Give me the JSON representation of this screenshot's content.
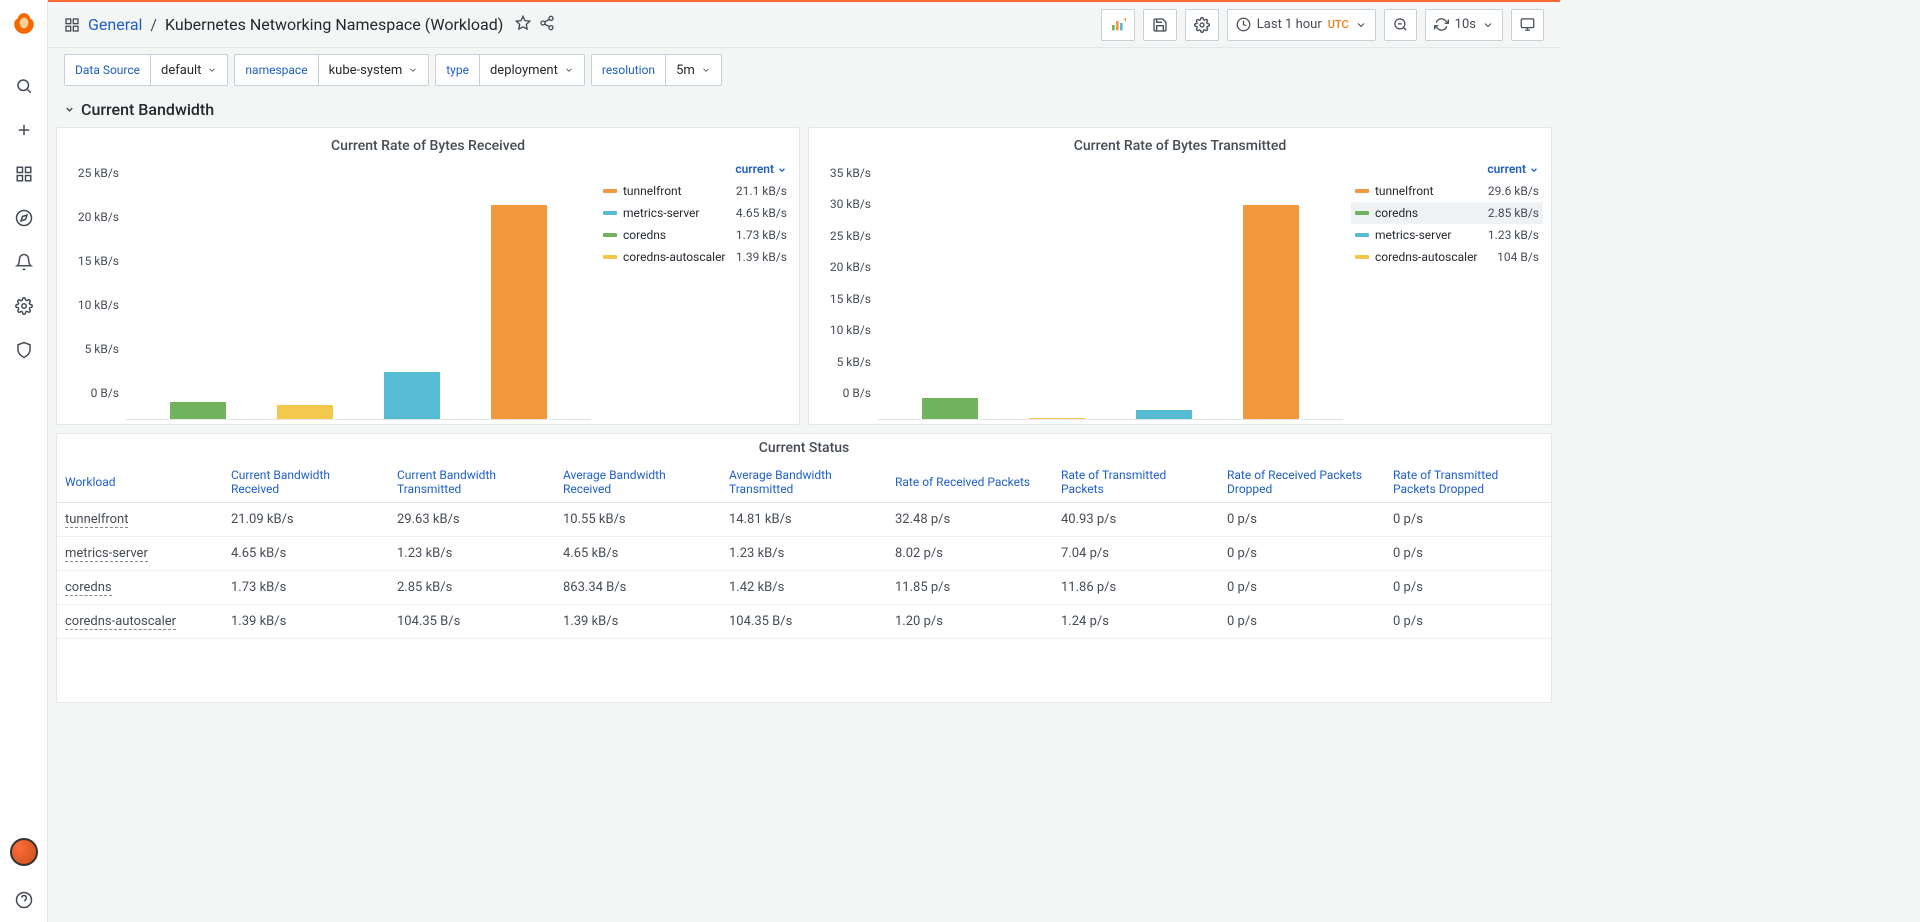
{
  "breadcrumb": {
    "folder": "General",
    "title": "Kubernetes Networking Namespace (Workload)"
  },
  "timepicker": {
    "label": "Last 1 hour",
    "tz": "UTC",
    "refresh": "10s"
  },
  "variables": {
    "datasource": {
      "label": "Data Source",
      "value": "default"
    },
    "namespace": {
      "label": "namespace",
      "value": "kube-system"
    },
    "type": {
      "label": "type",
      "value": "deployment"
    },
    "resolution": {
      "label": "resolution",
      "value": "5m"
    }
  },
  "row": {
    "title": "Current Bandwidth"
  },
  "colors": {
    "tunnelfront": "#f2993d",
    "metrics-server": "#56bcd3",
    "coredns": "#70b35c",
    "coredns-autoscaler": "#f2c94c"
  },
  "chart_rx": {
    "title": "Current Rate of Bytes Received",
    "ymax": 25,
    "ystep": 5,
    "unit": "kB/s",
    "zero_label": "0 B/s",
    "legend_header": "current",
    "bars_order": [
      "coredns",
      "coredns-autoscaler",
      "metrics-server",
      "tunnelfront"
    ],
    "values": {
      "tunnelfront": 21.1,
      "metrics-server": 4.65,
      "coredns": 1.73,
      "coredns-autoscaler": 1.39
    },
    "legend": [
      {
        "name": "tunnelfront",
        "val": "21.1 kB/s",
        "hl": false
      },
      {
        "name": "metrics-server",
        "val": "4.65 kB/s",
        "hl": false
      },
      {
        "name": "coredns",
        "val": "1.73 kB/s",
        "hl": false
      },
      {
        "name": "coredns-autoscaler",
        "val": "1.39 kB/s",
        "hl": false
      }
    ]
  },
  "chart_tx": {
    "title": "Current Rate of Bytes Transmitted",
    "ymax": 35,
    "ystep": 5,
    "unit": "kB/s",
    "zero_label": "0 B/s",
    "legend_header": "current",
    "bars_order": [
      "coredns",
      "coredns-autoscaler",
      "metrics-server",
      "tunnelfront"
    ],
    "values": {
      "tunnelfront": 29.6,
      "metrics-server": 1.23,
      "coredns": 2.85,
      "coredns-autoscaler": 0.104
    },
    "legend": [
      {
        "name": "tunnelfront",
        "val": "29.6 kB/s",
        "hl": false
      },
      {
        "name": "coredns",
        "val": "2.85 kB/s",
        "hl": true
      },
      {
        "name": "metrics-server",
        "val": "1.23 kB/s",
        "hl": false
      },
      {
        "name": "coredns-autoscaler",
        "val": "104 B/s",
        "hl": false
      }
    ]
  },
  "status_table": {
    "title": "Current Status",
    "columns": [
      "Workload",
      "Current Bandwidth Received",
      "Current Bandwidth Transmitted",
      "Average Bandwidth Received",
      "Average Bandwidth Transmitted",
      "Rate of Received Packets",
      "Rate of Transmitted Packets",
      "Rate of Received Packets Dropped",
      "Rate of Transmitted Packets Dropped"
    ],
    "rows": [
      {
        "workload": "tunnelfront",
        "cells": [
          "21.09 kB/s",
          "29.63 kB/s",
          "10.55 kB/s",
          "14.81 kB/s",
          "32.48 p/s",
          "40.93 p/s",
          "0 p/s",
          "0 p/s"
        ]
      },
      {
        "workload": "metrics-server",
        "cells": [
          "4.65 kB/s",
          "1.23 kB/s",
          "4.65 kB/s",
          "1.23 kB/s",
          "8.02 p/s",
          "7.04 p/s",
          "0 p/s",
          "0 p/s"
        ]
      },
      {
        "workload": "coredns",
        "cells": [
          "1.73 kB/s",
          "2.85 kB/s",
          "863.34 B/s",
          "1.42 kB/s",
          "11.85 p/s",
          "11.86 p/s",
          "0 p/s",
          "0 p/s"
        ]
      },
      {
        "workload": "coredns-autoscaler",
        "cells": [
          "1.39 kB/s",
          "104.35 B/s",
          "1.39 kB/s",
          "104.35 B/s",
          "1.20 p/s",
          "1.24 p/s",
          "0 p/s",
          "0 p/s"
        ]
      }
    ]
  }
}
